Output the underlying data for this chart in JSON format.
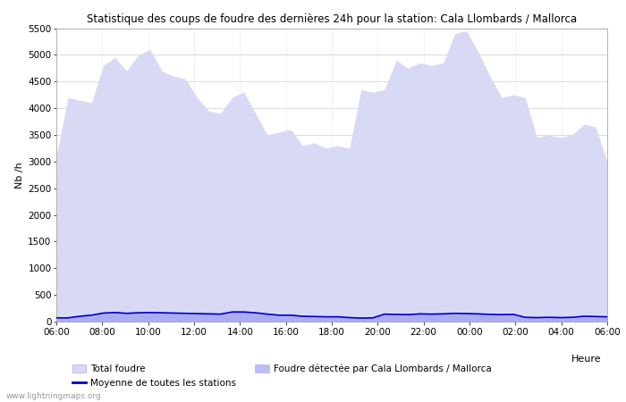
{
  "title": "Statistique des coups de foudre des dernières 24h pour la station: Cala Llombards / Mallorca",
  "ylabel": "Nb /h",
  "xlabel_label": "Heure",
  "ylim": [
    0,
    5500
  ],
  "yticks": [
    0,
    500,
    1000,
    1500,
    2000,
    2500,
    3000,
    3500,
    4000,
    4500,
    5000,
    5500
  ],
  "xtick_labels": [
    "06:00",
    "08:00",
    "10:00",
    "12:00",
    "14:00",
    "16:00",
    "18:00",
    "20:00",
    "22:00",
    "00:00",
    "02:00",
    "04:00",
    "06:00"
  ],
  "background_color": "#ffffff",
  "plot_bg_color": "#ffffff",
  "grid_color": "#cccccc",
  "total_foudre_color": "#d8daf5",
  "total_foudre_edge_color": "#aaaacc",
  "foudre_detectee_color": "#8888ee",
  "foudre_detectee_alpha": 0.55,
  "moyenne_color": "#0000cc",
  "watermark": "www.lightningmaps.org",
  "legend_labels": [
    "Total foudre",
    "Moyenne de toutes les stations",
    "Foudre détectée par Cala Llombards / Mallorca"
  ],
  "total_foudre_values": [
    3100,
    4200,
    4150,
    4100,
    4800,
    4950,
    4700,
    5000,
    5100,
    4700,
    4600,
    4550,
    4200,
    3950,
    3900,
    4200,
    4300,
    3900,
    3500,
    3550,
    3600,
    3300,
    3350,
    3250,
    3300,
    3250,
    4350,
    4300,
    4350,
    4900,
    4750,
    4850,
    4800,
    4850,
    5400,
    5450,
    5050,
    4600,
    4200,
    4250,
    4200,
    3450,
    3500,
    3450,
    3500,
    3700,
    3650,
    3000
  ],
  "foudre_detectee_values": [
    80,
    80,
    120,
    140,
    180,
    190,
    175,
    185,
    190,
    185,
    180,
    175,
    170,
    165,
    160,
    200,
    200,
    185,
    160,
    140,
    140,
    120,
    110,
    110,
    105,
    90,
    80,
    85,
    160,
    155,
    150,
    165,
    160,
    165,
    175,
    170,
    165,
    155,
    150,
    155,
    95,
    90,
    95,
    90,
    95,
    115,
    110,
    110
  ],
  "moyenne_values": [
    70,
    70,
    100,
    120,
    160,
    170,
    155,
    165,
    170,
    165,
    160,
    155,
    150,
    145,
    140,
    180,
    180,
    165,
    140,
    120,
    120,
    100,
    95,
    90,
    90,
    75,
    65,
    70,
    140,
    135,
    130,
    145,
    140,
    145,
    155,
    150,
    145,
    135,
    130,
    135,
    80,
    75,
    80,
    75,
    80,
    100,
    95,
    90
  ]
}
